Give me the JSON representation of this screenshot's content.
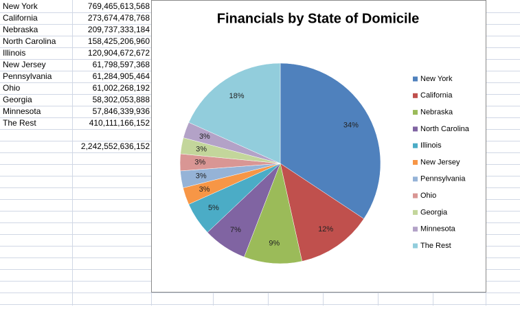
{
  "sheet": {
    "rows": [
      [
        "New York",
        "769,465,613,568"
      ],
      [
        "California",
        "273,674,478,768"
      ],
      [
        "Nebraska",
        "209,737,333,184"
      ],
      [
        "North Carolina",
        "158,425,206,960"
      ],
      [
        "Illinois",
        "120,904,672,672"
      ],
      [
        "New Jersey",
        "61,798,597,368"
      ],
      [
        "Pennsylvania",
        "61,284,905,464"
      ],
      [
        "Ohio",
        "61,002,268,192"
      ],
      [
        "Georgia",
        "58,302,053,888"
      ],
      [
        "Minnesota",
        "57,846,339,936"
      ],
      [
        "The Rest",
        "410,111,166,152"
      ]
    ],
    "total": "2,242,552,636,152"
  },
  "chart_data": {
    "type": "pie",
    "title": "Financials by State of Domicile",
    "categories": [
      "New York",
      "California",
      "Nebraska",
      "North Carolina",
      "Illinois",
      "New Jersey",
      "Pennsylvania",
      "Ohio",
      "Georgia",
      "Minnesota",
      "The Rest"
    ],
    "values": [
      34.31,
      12.2,
      9.35,
      7.06,
      5.39,
      2.76,
      2.73,
      2.72,
      2.6,
      2.58,
      18.29
    ],
    "value_labels": [
      "34%",
      "12%",
      "9%",
      "7%",
      "5%",
      "3%",
      "3%",
      "3%",
      "3%",
      "3%",
      "18%"
    ],
    "colors": [
      "#4f81bd",
      "#c0504d",
      "#9bbb59",
      "#8064a2",
      "#4bacc6",
      "#f79646",
      "#95b3d7",
      "#d99694",
      "#c3d69b",
      "#b3a2c7",
      "#92cddc"
    ],
    "legend": "right"
  }
}
